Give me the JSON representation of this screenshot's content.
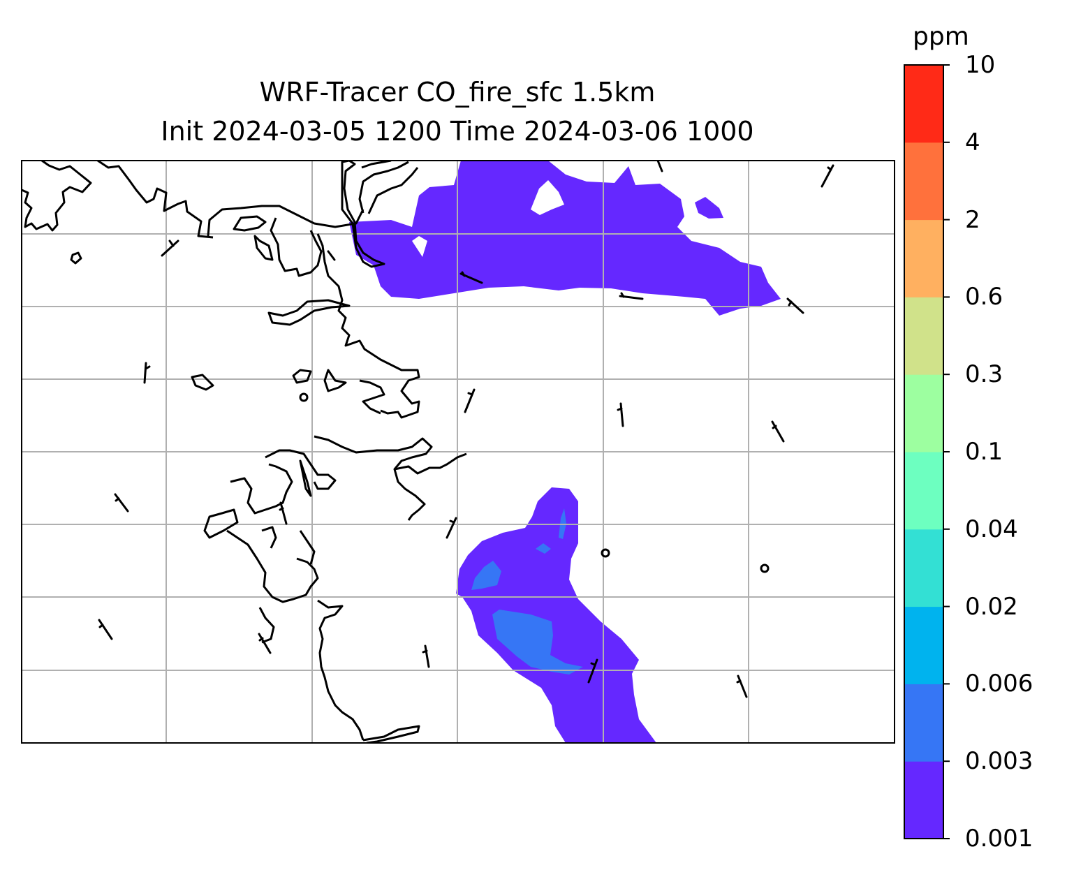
{
  "title": {
    "line1": "WRF-Tracer CO_fire_sfc 1.5km",
    "line2": "Init 2024-03-05 1200 Time 2024-03-06 1000"
  },
  "colorbar": {
    "unit": "ppm",
    "levels": [
      "0.001",
      "0.003",
      "0.006",
      "0.02",
      "0.04",
      "0.1",
      "0.3",
      "0.6",
      "2",
      "4",
      "10"
    ],
    "colors": [
      "#6528ff",
      "#3676f5",
      "#00b3ee",
      "#33e0d4",
      "#6dffc0",
      "#9dffa0",
      "#d0e28a",
      "#ffb060",
      "#ff713c",
      "#ff2a17"
    ]
  },
  "map": {
    "features": [
      "coastline",
      "gridlines",
      "wind-barbs",
      "co-plume-north",
      "co-plume-south"
    ]
  }
}
